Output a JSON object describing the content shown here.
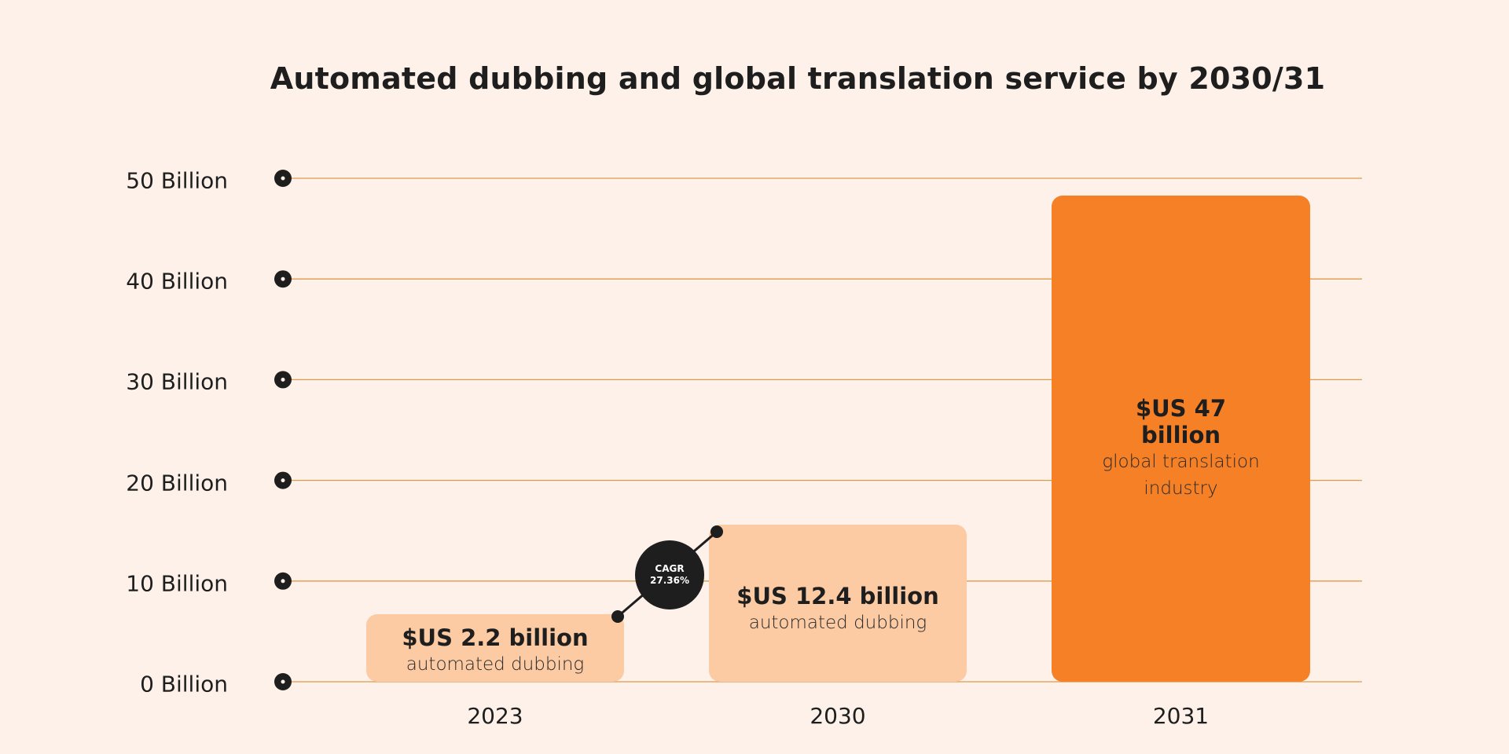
{
  "chart_data": {
    "type": "bar",
    "title": "Automated dubbing and global translation service by 2030/31",
    "categories": [
      "2023",
      "2030",
      "2031"
    ],
    "values": [
      2.2,
      12.4,
      47
    ],
    "value_labels": [
      "$US 2.2 billion",
      "$US 12.4 billion",
      "$US 47 billion"
    ],
    "bar_descriptions": [
      "automated dubbing",
      "automated dubbing",
      "global translation industry"
    ],
    "y_ticks": [
      "0 Billion",
      "10 Billion",
      "20 Billion",
      "30 Billion",
      "40 Billion",
      "50 Billion"
    ],
    "ylim": [
      0,
      50
    ],
    "grid": true,
    "annotation": {
      "label": "CAGR",
      "value": "27.36%"
    },
    "colors": {
      "background": "#fdf1e9",
      "light_bar": "#fccaa3",
      "highlight_bar": "#f58025",
      "grid": "#dd9a4a",
      "marker": "#1e1e1e"
    }
  }
}
